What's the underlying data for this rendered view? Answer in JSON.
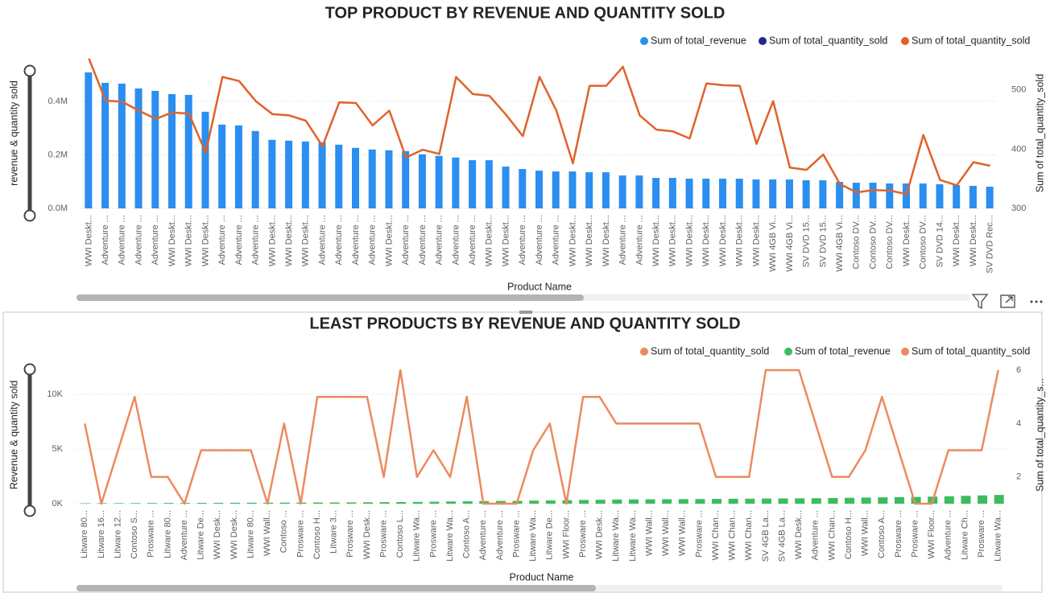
{
  "chart_data": [
    {
      "type": "combo",
      "title": "TOP PRODUCT BY REVENUE AND QUANTITY SOLD",
      "x_label": "Product Name",
      "y_label": "revenue & quantity sold",
      "y2_label": "Sum of total_quantity_sold",
      "categories": [
        "WWI Deskt...",
        "Adventure ...",
        "Adventure ...",
        "Adventure ...",
        "Adventure ...",
        "WWI Deskt...",
        "WWI Deskt...",
        "WWI Deskt...",
        "Adventure ...",
        "Adventure ...",
        "Adventure ...",
        "WWI Deskt...",
        "WWI Deskt...",
        "WWI Deskt...",
        "Adventure ...",
        "Adventure ...",
        "Adventure ...",
        "Adventure ...",
        "WWI Deskt...",
        "Adventure ...",
        "Adventure ...",
        "Adventure ...",
        "Adventure ...",
        "Adventure ...",
        "WWI Deskt...",
        "WWI Deskt...",
        "Adventure ...",
        "Adventure ...",
        "Adventure ...",
        "WWI Deskt...",
        "WWI Deskt...",
        "WWI Deskt...",
        "Adventure ...",
        "Adventure ...",
        "WWI Deskt...",
        "WWI Deskt...",
        "WWI Deskt...",
        "WWI Deskt...",
        "WWI Deskt...",
        "WWI Deskt...",
        "WWI Deskt...",
        "WWI 4GB Vi...",
        "WWI 4GB Vi...",
        "SV DVD 15...",
        "SV DVD 15...",
        "WWI 4GB Vi...",
        "Contoso DV...",
        "Contoso DV...",
        "Contoso DV...",
        "WWI Deskt...",
        "Contoso DV...",
        "SV DVD 14...",
        "WWI Deskt...",
        "WWI Deskt...",
        "SV DVD Rec..."
      ],
      "series": [
        {
          "name": "Sum of total_revenue",
          "type": "bar",
          "axis": "y",
          "color": "#2b8ef0",
          "values": [
            508000,
            469000,
            466000,
            448000,
            439000,
            427000,
            424000,
            361000,
            313000,
            310000,
            289000,
            256000,
            253000,
            250000,
            247000,
            238000,
            226000,
            220000,
            217000,
            214000,
            202000,
            196000,
            190000,
            180000,
            180000,
            156000,
            147000,
            141000,
            138000,
            138000,
            135000,
            135000,
            123000,
            123000,
            114000,
            114000,
            111000,
            111000,
            111000,
            111000,
            108000,
            108000,
            108000,
            105000,
            105000,
            99000,
            96000,
            96000,
            93000,
            93000,
            93000,
            90000,
            87000,
            84000,
            81000
          ]
        },
        {
          "name": "Sum of total_quantity_sold",
          "type": "bar",
          "axis": "y",
          "color": "#1f2a8a",
          "values": [
            553,
            482,
            480,
            465,
            451,
            462,
            460,
            394,
            522,
            515,
            481,
            459,
            457,
            448,
            405,
            479,
            478,
            440,
            465,
            386,
            399,
            392,
            522,
            493,
            490,
            458,
            422,
            522,
            466,
            376,
            507,
            507,
            539,
            457,
            433,
            430,
            418,
            511,
            508,
            507,
            409,
            481,
            369,
            365,
            391,
            341,
            327,
            331,
            330,
            324,
            424,
            348,
            339,
            378,
            372
          ]
        },
        {
          "name": "Sum of total_quantity_sold",
          "type": "line",
          "axis": "y2",
          "color": "#e0622a",
          "values": [
            553,
            482,
            480,
            465,
            451,
            462,
            460,
            394,
            522,
            515,
            481,
            459,
            457,
            448,
            405,
            479,
            478,
            440,
            465,
            386,
            399,
            392,
            522,
            493,
            490,
            458,
            422,
            522,
            466,
            376,
            507,
            507,
            539,
            457,
            433,
            430,
            418,
            511,
            508,
            507,
            409,
            481,
            369,
            365,
            391,
            341,
            327,
            331,
            330,
            324,
            424,
            348,
            339,
            378,
            372
          ]
        }
      ],
      "ylim": [
        0,
        562000
      ],
      "yticks": [
        {
          "value": 0,
          "label": "0.0M"
        },
        {
          "value": 200000,
          "label": "0.2M"
        },
        {
          "value": 400000,
          "label": "0.4M"
        }
      ],
      "y2lim": [
        300,
        554
      ],
      "y2ticks": [
        300,
        400,
        500
      ],
      "grid": true,
      "legend": "top-right"
    },
    {
      "type": "combo",
      "title": "LEAST PRODUCTS BY REVENUE AND QUANTITY SOLD",
      "x_label": "Product Name",
      "y_label": "Revenue & quantity sold",
      "y2_label": "Sum of total_quantity_s...",
      "categories": [
        "Litware 80...",
        "Litware 16...",
        "Litware 12...",
        "Contoso S...",
        "Prosware ...",
        "Litware 80...",
        "Adventure ...",
        "Litware De...",
        "WWI Desk...",
        "WWI Desk...",
        "Litware 80...",
        "WWI Wall...",
        "Contoso ...",
        "Prosware ...",
        "Contoso H...",
        "Litware 3...",
        "Prosware ...",
        "WWI Desk...",
        "Prosware ...",
        "Contoso L...",
        "Litware Wa...",
        "Prosware ...",
        "Litware Wa...",
        "Contoso A...",
        "Adventure ...",
        "Adventure ...",
        "Prosware ...",
        "Litware Wa...",
        "Litware De...",
        "WWI Floor...",
        "Prosware ...",
        "WWI Desk...",
        "Litware Wa...",
        "Litware Wa...",
        "WWI Wall...",
        "WWI Wall...",
        "WWI Wall...",
        "Prosware ...",
        "WWI Chan...",
        "WWI Chan...",
        "WWI Chan...",
        "SV 4GB La...",
        "SV 4GB La...",
        "WWI Desk...",
        "Adventure ...",
        "WWI Chan...",
        "Contoso H...",
        "WWI Wall...",
        "Contoso A...",
        "Prosware ...",
        "Prosware ...",
        "WWI Floor...",
        "Adventure ...",
        "Litware Ch...",
        "Prosware ...",
        "Litware Wa..."
      ],
      "series": [
        {
          "name": "Sum of total_quantity_sold",
          "type": "bar",
          "axis": "y",
          "color": "#ec8a5f",
          "values": [
            4,
            1,
            3,
            5,
            2,
            2,
            1,
            3,
            3,
            3,
            3,
            1,
            4,
            1,
            5,
            5,
            5,
            5,
            2,
            6,
            2,
            3,
            2,
            5,
            1,
            1,
            1,
            3,
            4,
            1,
            5,
            5,
            4,
            4,
            4,
            4,
            4,
            4,
            2,
            2,
            2,
            6,
            6,
            6,
            4,
            2,
            2,
            3,
            5,
            3,
            1,
            1,
            3,
            3,
            3,
            6
          ]
        },
        {
          "name": "Sum of total_revenue",
          "type": "bar",
          "axis": "y",
          "color": "#3bbd5d",
          "values": [
            40,
            45,
            50,
            55,
            60,
            65,
            70,
            75,
            80,
            85,
            90,
            95,
            100,
            105,
            110,
            115,
            120,
            130,
            140,
            150,
            160,
            180,
            200,
            220,
            240,
            250,
            260,
            280,
            300,
            320,
            340,
            360,
            380,
            390,
            400,
            410,
            420,
            430,
            440,
            450,
            460,
            470,
            480,
            490,
            500,
            520,
            540,
            560,
            580,
            600,
            620,
            650,
            680,
            720,
            760,
            800
          ]
        },
        {
          "name": "Sum of total_quantity_sold",
          "type": "line",
          "axis": "y2",
          "color": "#ec8a5f",
          "values": [
            4,
            1,
            3,
            5,
            2,
            2,
            1,
            3,
            3,
            3,
            3,
            1,
            4,
            1,
            5,
            5,
            5,
            5,
            2,
            6,
            2,
            3,
            2,
            5,
            1,
            1,
            1,
            3,
            4,
            1,
            5,
            5,
            4,
            4,
            4,
            4,
            4,
            4,
            2,
            2,
            2,
            6,
            6,
            6,
            4,
            2,
            2,
            3,
            5,
            3,
            1,
            1,
            3,
            3,
            3,
            6
          ]
        }
      ],
      "ylim": [
        0,
        12600
      ],
      "yticks": [
        {
          "value": 0,
          "label": "0K"
        },
        {
          "value": 5000,
          "label": "5K"
        },
        {
          "value": 10000,
          "label": "10K"
        }
      ],
      "y2lim": [
        1,
        6.15
      ],
      "y2ticks": [
        2,
        4,
        6
      ],
      "grid": true,
      "legend": "top-right"
    }
  ]
}
